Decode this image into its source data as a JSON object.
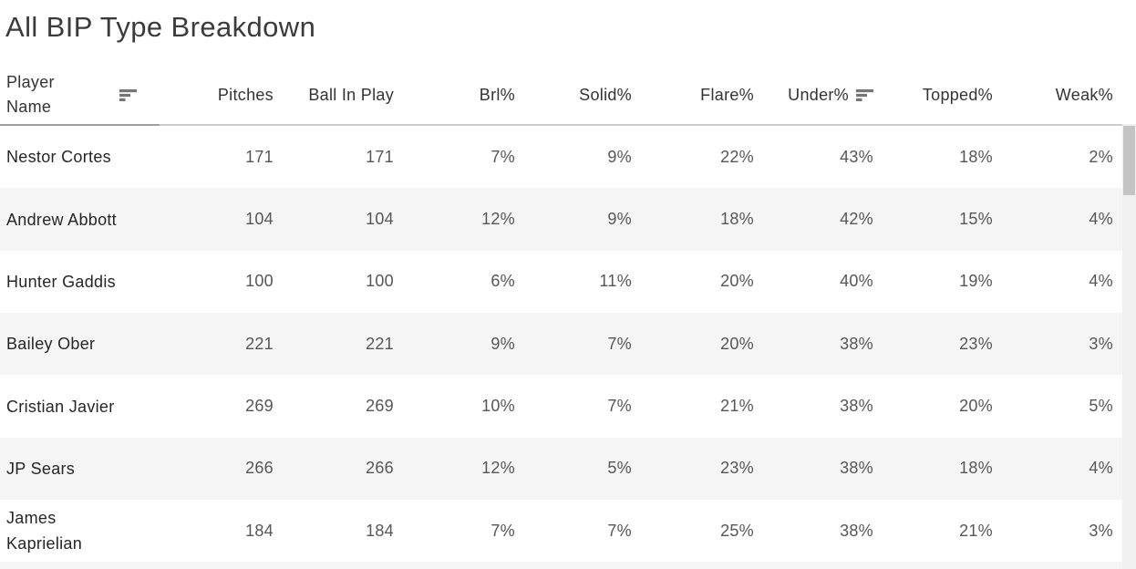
{
  "chart_data": {
    "type": "table",
    "title": "All BIP Type Breakdown",
    "row_header": {
      "label": "Player Name",
      "sorted": true,
      "sort_direction": "descending"
    },
    "columns": [
      {
        "label": "Pitches",
        "sorted": false
      },
      {
        "label": "Ball In Play",
        "sorted": false
      },
      {
        "label": "Brl%",
        "sorted": false
      },
      {
        "label": "Solid%",
        "sorted": false
      },
      {
        "label": "Flare%",
        "sorted": false
      },
      {
        "label": "Under%",
        "sorted": true,
        "sort_direction": "descending"
      },
      {
        "label": "Topped%",
        "sorted": false
      },
      {
        "label": "Weak%",
        "sorted": false
      }
    ],
    "rows": [
      {
        "name": "Nestor Cortes",
        "values": [
          "171",
          "171",
          "7%",
          "9%",
          "22%",
          "43%",
          "18%",
          "2%"
        ]
      },
      {
        "name": "Andrew Abbott",
        "values": [
          "104",
          "104",
          "12%",
          "9%",
          "18%",
          "42%",
          "15%",
          "4%"
        ]
      },
      {
        "name": "Hunter Gaddis",
        "values": [
          "100",
          "100",
          "6%",
          "11%",
          "20%",
          "40%",
          "19%",
          "4%"
        ]
      },
      {
        "name": "Bailey Ober",
        "values": [
          "221",
          "221",
          "9%",
          "7%",
          "20%",
          "38%",
          "23%",
          "3%"
        ]
      },
      {
        "name": "Cristian Javier",
        "values": [
          "269",
          "269",
          "10%",
          "7%",
          "21%",
          "38%",
          "20%",
          "5%"
        ]
      },
      {
        "name": "JP Sears",
        "values": [
          "266",
          "266",
          "12%",
          "5%",
          "23%",
          "38%",
          "18%",
          "4%"
        ]
      },
      {
        "name": "James Kaprielian",
        "values": [
          "184",
          "184",
          "7%",
          "7%",
          "25%",
          "38%",
          "21%",
          "3%"
        ]
      }
    ],
    "layout": {
      "striped": true,
      "first_row_background": "white",
      "grid": false
    }
  },
  "scrollbar": {
    "orientation": "vertical",
    "thumb_position": "top"
  },
  "colors": {
    "title_text": "#3b3b3b",
    "header_text": "#333333",
    "name_text": "#262626",
    "value_text": "#565656",
    "stripe": "#f5f5f5",
    "header_border_left": "#9e9e9e",
    "header_border_right": "#cccccc",
    "sort_icon": "#757575",
    "scrollbar_track": "#f0f0f0",
    "scrollbar_thumb": "#c4c4c4"
  }
}
